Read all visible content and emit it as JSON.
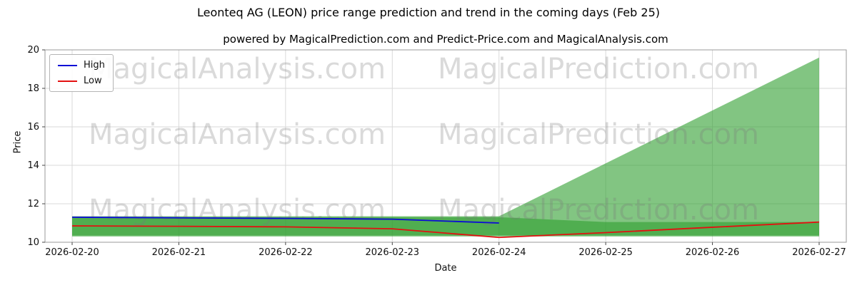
{
  "watermarks": {
    "texts": [
      "MagicalAnalysis.com",
      "MagicalPrediction.com"
    ]
  },
  "chart_data": {
    "type": "line",
    "title": "Leonteq AG (LEON) price range prediction and trend in the coming days (Feb 25)",
    "subtitle": "powered by MagicalPrediction.com and Predict-Price.com and MagicalAnalysis.com",
    "xlabel": "Date",
    "ylabel": "Price",
    "ylim": [
      10,
      20
    ],
    "yticks": [
      10,
      12,
      14,
      16,
      18,
      20
    ],
    "grid": true,
    "legend_position": "upper left",
    "categories": [
      "2026-02-20",
      "2026-02-21",
      "2026-02-22",
      "2026-02-23",
      "2026-02-24",
      "2026-02-25",
      "2026-02-26",
      "2026-02-27"
    ],
    "series": [
      {
        "name": "High",
        "color": "#0b0bd6",
        "values": [
          11.3,
          11.27,
          11.24,
          11.2,
          11.0,
          null,
          null,
          null
        ]
      },
      {
        "name": "Low",
        "color": "#e31010",
        "values": [
          10.85,
          10.83,
          10.8,
          10.7,
          10.25,
          10.5,
          10.78,
          11.05
        ]
      }
    ],
    "bands": [
      {
        "name": "prediction-fan",
        "color": "#2e9e2e",
        "opacity": 0.6,
        "lower": [
          10.3,
          10.3,
          10.3,
          10.3,
          10.3,
          10.3,
          10.3,
          10.3
        ],
        "upper": [
          11.35,
          11.35,
          11.35,
          11.35,
          11.35,
          14.1,
          16.85,
          19.6
        ]
      },
      {
        "name": "historical-range",
        "color": "#2e9e2e",
        "opacity": 0.6,
        "lower": [
          10.35,
          10.35,
          10.35,
          10.35,
          10.35,
          10.35,
          10.35,
          10.35
        ],
        "upper": [
          11.3,
          11.3,
          11.3,
          11.3,
          11.3,
          11.05,
          11.05,
          11.05
        ]
      }
    ]
  }
}
